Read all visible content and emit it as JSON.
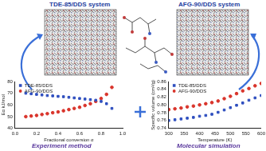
{
  "chart_data": [
    {
      "type": "scatter",
      "x_label": "Fractional conversion α",
      "y_label": "Eα kJ/mol",
      "x": [
        0.1,
        0.15,
        0.2,
        0.25,
        0.3,
        0.35,
        0.4,
        0.45,
        0.5,
        0.55,
        0.6,
        0.65,
        0.7,
        0.75,
        0.8,
        0.85,
        0.9
      ],
      "series": [
        {
          "name": "TDE-85/DDS",
          "color": "#2f4fbf",
          "marker": "square",
          "values": [
            70,
            69.5,
            69,
            68.5,
            68,
            67.7,
            67.3,
            67,
            66.5,
            66,
            65.5,
            65,
            64.5,
            64,
            63,
            61,
            57
          ]
        },
        {
          "name": "AFG-90/DDS",
          "color": "#d9342b",
          "marker": "circle",
          "values": [
            50,
            50.5,
            51,
            51.8,
            52.5,
            53.3,
            54,
            55,
            56,
            57,
            58,
            59.5,
            61,
            63,
            65.5,
            69,
            75
          ]
        }
      ],
      "xlim": [
        0,
        1
      ],
      "xticks": [
        {
          "value": 0,
          "label": "0.0"
        },
        0.2,
        0.4,
        0.6,
        0.8,
        {
          "value": 1,
          "label": "1.0"
        }
      ],
      "ylim": [
        40,
        80
      ],
      "yticks": [
        40,
        50,
        60,
        70,
        80
      ],
      "grid": false,
      "legend": "upper left"
    },
    {
      "type": "scatter",
      "x_label": "Temperature (K)",
      "y_label": "Specific volume (cm³/g)",
      "x": [
        300,
        320,
        340,
        360,
        380,
        400,
        420,
        440,
        460,
        480,
        500,
        520,
        540,
        560,
        580,
        600
      ],
      "series": [
        {
          "name": "TDE-85/DDS",
          "color": "#2f4fbf",
          "marker": "square",
          "values": [
            0.76,
            0.762,
            0.764,
            0.766,
            0.768,
            0.771,
            0.773,
            0.776,
            0.781,
            0.787,
            0.793,
            0.799,
            0.805,
            0.812,
            0.818,
            0.824
          ]
        },
        {
          "name": "AFG-90/DDS",
          "color": "#d9342b",
          "marker": "circle",
          "values": [
            0.788,
            0.79,
            0.792,
            0.795,
            0.797,
            0.8,
            0.803,
            0.806,
            0.81,
            0.816,
            0.822,
            0.829,
            0.836,
            0.842,
            0.849,
            0.855
          ]
        }
      ],
      "xlim": [
        300,
        600
      ],
      "xticks": [
        300,
        350,
        400,
        450,
        500,
        550,
        600
      ],
      "ylim": [
        0.74,
        0.86
      ],
      "yticks": [
        0.74,
        0.76,
        0.78,
        {
          "value": 0.8,
          "label": "0.80"
        },
        0.82,
        0.84,
        0.86
      ],
      "grid": false,
      "legend": "upper left"
    }
  ],
  "captions": {
    "left_system": "TDE-85/DDS system",
    "right_system": "AFG-90/DDS system",
    "left_method": "Experiment method",
    "right_method": "Molecular simulation"
  }
}
